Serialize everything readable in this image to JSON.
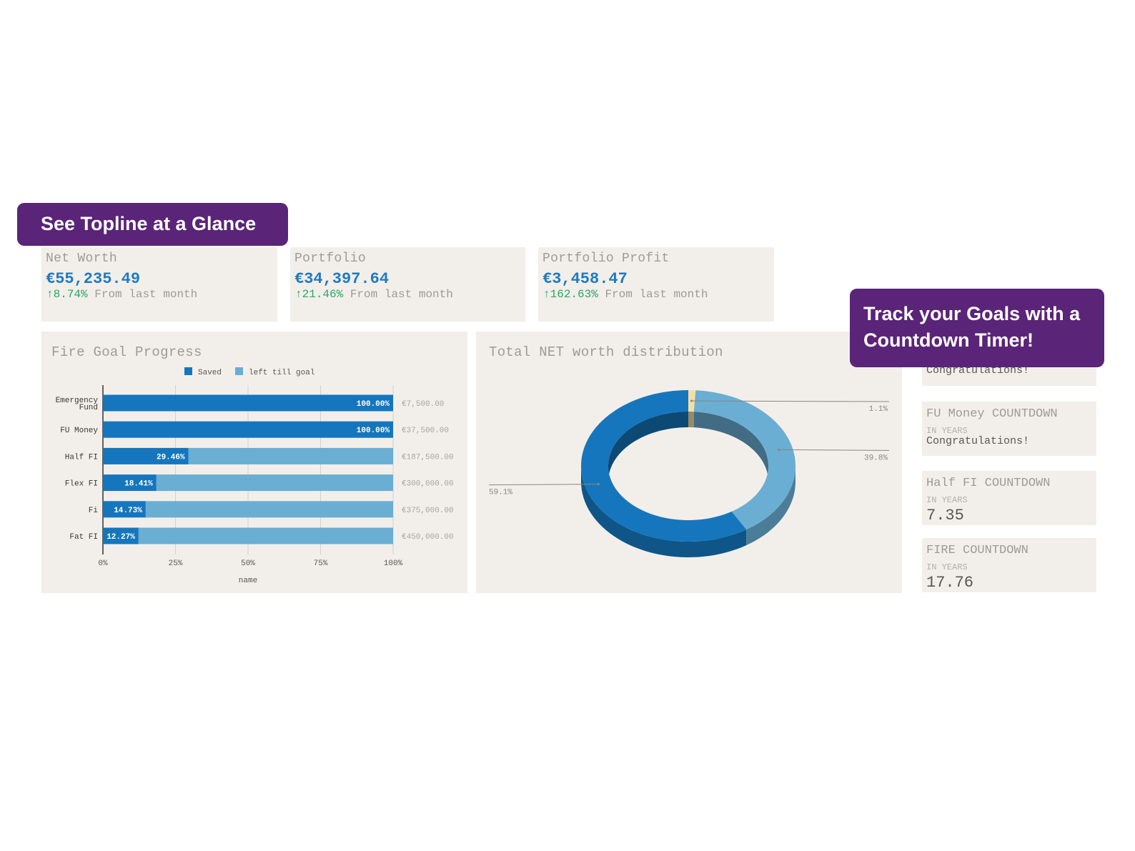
{
  "banners": {
    "topline": "See Topline at a Glance",
    "goals_line1": "Track your Goals with a",
    "goals_line2": "Countdown Timer!"
  },
  "cards": [
    {
      "label": "Net Worth",
      "value": "€55,235.49",
      "arrow": "↑",
      "change": "8.74%",
      "suffix": "From last month"
    },
    {
      "label": "Portfolio",
      "value": "€34,397.64",
      "arrow": "↑",
      "change": "21.46%",
      "suffix": "From last month"
    },
    {
      "label": "Portfolio Profit",
      "value": "€3,458.47",
      "arrow": "↑",
      "change": "162.63%",
      "suffix": "From last month"
    }
  ],
  "fire_goal": {
    "title": "Fire Goal Progress",
    "chart_data": {
      "type": "bar",
      "orientation": "horizontal",
      "stacked": "percent",
      "categories": [
        "Emergency Fund",
        "FU Money",
        "Half FI",
        "Flex FI",
        "Fi",
        "Fat FI"
      ],
      "series": [
        {
          "name": "Saved",
          "values": [
            100.0,
            100.0,
            29.46,
            18.41,
            14.73,
            12.27
          ],
          "color": "#1576bd"
        },
        {
          "name": "left till goal",
          "values": [
            0,
            0,
            70.54,
            81.59,
            85.27,
            87.73
          ],
          "color": "#6aaed3"
        }
      ],
      "data_labels": [
        "100.00%",
        "100.00%",
        "29.46%",
        "18.41%",
        "14.73%",
        "12.27%"
      ],
      "goal_labels": [
        "€7,500.00",
        "€37,500.00",
        "€187,500.00",
        "€300,000.00",
        "€375,000.00",
        "€450,000.00"
      ],
      "x_ticks": [
        "0%",
        "25%",
        "50%",
        "75%",
        "100%"
      ],
      "xlabel": "name",
      "xlim": [
        0,
        100
      ],
      "legend": "top",
      "grid": true
    }
  },
  "distribution": {
    "title": "Total NET worth distribution",
    "chart_data": {
      "type": "pie",
      "style": "donut-3d",
      "slices": [
        {
          "value": 1.1,
          "label": "1.1%",
          "color": "#f3dfa6"
        },
        {
          "value": 39.8,
          "label": "39.8%",
          "color": "#6aaed3"
        },
        {
          "value": 59.1,
          "label": "59.1%",
          "color": "#1576bd"
        }
      ]
    }
  },
  "countdowns": [
    {
      "title": "",
      "sub": "",
      "value": "Congratulations!"
    },
    {
      "title": "FU Money COUNTDOWN",
      "sub": "IN YEARS",
      "value": "Congratulations!"
    },
    {
      "title": "Half FI COUNTDOWN",
      "sub": "IN YEARS",
      "value": "7.35"
    },
    {
      "title": "FIRE COUNTDOWN",
      "sub": "IN YEARS",
      "value": "17.76"
    }
  ]
}
